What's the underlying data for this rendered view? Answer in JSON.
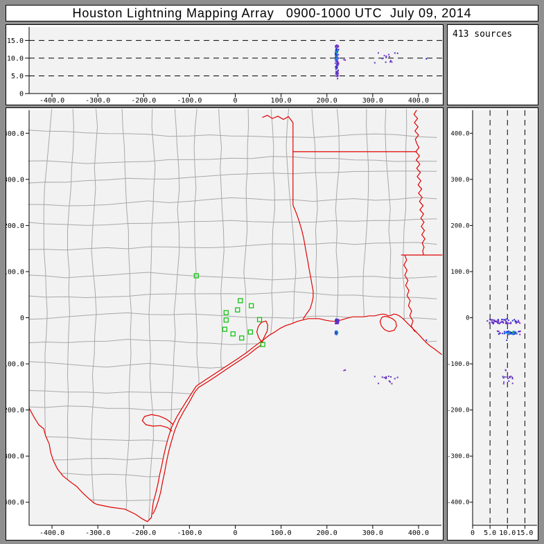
{
  "title": "Houston Lightning Mapping Array   0900-1000 UTC  July 09, 2014",
  "sources_label": "413 sources",
  "colors": {
    "frame": "#8f8f8f",
    "panel": "#ffffff",
    "plot_bg": "#f2f2f2",
    "axis": "#000000",
    "county_line": "#a8a8a8",
    "state_border": "#e00000",
    "station": "#00c000",
    "dash_line": "#000000",
    "text": "#000000",
    "source_purple": "#7a33cc",
    "source_violet": "#5533bb",
    "source_blue": "#2233cc",
    "source_bright_blue": "#2255ee",
    "source_cyan": "#00a8ff",
    "source_green": "#22bb44"
  },
  "axes": {
    "x_km": [
      -450,
      450
    ],
    "y_km": [
      -450,
      450
    ],
    "alt_km": [
      0,
      18.4
    ],
    "x_ticks": {
      "values": [
        -400,
        -300,
        -200,
        -100,
        0,
        100,
        200,
        300,
        400
      ],
      "labels": [
        "-400.0",
        "-300.0",
        "-200.0",
        "-100.0",
        "0",
        "100.0",
        "200.0",
        "300.0",
        "400.0"
      ]
    },
    "y_ticks": {
      "values": [
        400,
        300,
        200,
        100,
        0,
        -100,
        -200,
        -300,
        -400
      ],
      "labels": [
        "400.0",
        "300.0",
        "200.0",
        "100.0",
        "0",
        "-100.0",
        "-200.0",
        "-300.0",
        "-400.0"
      ]
    },
    "alt_ticks": {
      "values": [
        0,
        5,
        10,
        15
      ],
      "labels": [
        "0",
        "5.0",
        "10.0",
        "15.0"
      ]
    },
    "alt_dash_values": [
      5,
      10,
      15
    ]
  },
  "chart_data": {
    "type": "scatter",
    "title": "Houston Lightning Mapping Array   0900-1000 UTC  July 09, 2014",
    "source_count": 413,
    "panels": [
      {
        "id": "alt-vs-east-west",
        "x_range_km": [
          -450,
          450
        ],
        "y_range_km": [
          0,
          18.4
        ],
        "dashed_gridlines_alt_km": [
          5,
          10,
          15
        ]
      },
      {
        "id": "plan-view-map",
        "x_range_km": [
          -450,
          450
        ],
        "y_range_km": [
          -450,
          450
        ]
      },
      {
        "id": "alt-vs-north-south",
        "x_range_km": [
          0,
          18.4
        ],
        "y_range_km": [
          -450,
          450
        ],
        "dashed_gridlines_alt_km": [
          5,
          10,
          15
        ]
      }
    ],
    "stations_km": [
      [
        -85,
        91
      ],
      [
        11,
        37
      ],
      [
        35,
        26
      ],
      [
        5,
        17
      ],
      [
        -20,
        11
      ],
      [
        -20,
        -5
      ],
      [
        -23,
        -25
      ],
      [
        -5,
        -35
      ],
      [
        14,
        -44
      ],
      [
        33,
        -31
      ],
      [
        53,
        -4
      ],
      [
        60,
        -58
      ]
    ],
    "flash_clusters": [
      {
        "name": "coastal-storm-column",
        "x": 222,
        "y": -8,
        "sx": 3.5,
        "sy": 5,
        "alt": [
          4.2,
          13.8
        ],
        "n": 60,
        "colors": [
          "source_purple",
          "source_violet",
          "source_purple",
          "source_blue"
        ]
      },
      {
        "name": "coastal-storm-band",
        "x": 221,
        "y": -33,
        "sx": 3,
        "sy": 4,
        "alt": [
          7.0,
          13.8
        ],
        "n": 25,
        "colors": [
          "source_blue",
          "source_violet",
          "source_purple"
        ]
      },
      {
        "name": "coastal-storm-core",
        "x": 221,
        "y": -33,
        "sx": 2.5,
        "sy": 3,
        "alt": [
          9.3,
          12.7
        ],
        "n": 38,
        "colors": [
          "source_bright_blue",
          "source_cyan",
          "source_blue",
          "source_cyan",
          "source_green"
        ]
      },
      {
        "name": "offshore-scatter",
        "x": 330,
        "y": -135,
        "sx": 26,
        "sy": 9,
        "alt": [
          8.5,
          11.5
        ],
        "n": 14,
        "colors": [
          "source_purple",
          "source_violet"
        ]
      },
      {
        "name": "stray-pair",
        "x": 236,
        "y": -113,
        "sx": 5,
        "sy": 4,
        "alt": [
          9.0,
          10.2
        ],
        "n": 2,
        "colors": [
          "source_purple"
        ]
      },
      {
        "name": "stray-east",
        "x": 416,
        "y": -48,
        "sx": 1,
        "sy": 1,
        "alt": [
          9.5,
          10.0
        ],
        "n": 1,
        "colors": [
          "source_blue"
        ]
      }
    ]
  },
  "map_features": {
    "county_grid": {
      "spacing_x_km": 52,
      "spacing_y_km": 50,
      "jitter_km": 9,
      "seed": 13
    },
    "coastline": [
      [
        -183,
        -432
      ],
      [
        -179,
        -400
      ],
      [
        -174,
        -382
      ],
      [
        -169,
        -361
      ],
      [
        -165,
        -340
      ],
      [
        -160,
        -319
      ],
      [
        -156,
        -298
      ],
      [
        -151,
        -277
      ],
      [
        -145,
        -256
      ],
      [
        -138,
        -235
      ],
      [
        -127,
        -214
      ],
      [
        -116,
        -196
      ],
      [
        -104,
        -177
      ],
      [
        -89,
        -154
      ],
      [
        -85,
        -148
      ],
      [
        -67,
        -136
      ],
      [
        -44,
        -121
      ],
      [
        -21,
        -106
      ],
      [
        2,
        -91
      ],
      [
        24,
        -76
      ],
      [
        42,
        -62
      ],
      [
        54,
        -53
      ],
      [
        64,
        -46
      ],
      [
        74,
        -38
      ],
      [
        86,
        -31
      ],
      [
        98,
        -23
      ],
      [
        110,
        -17
      ],
      [
        123,
        -13
      ],
      [
        135,
        -8
      ],
      [
        147,
        -5
      ],
      [
        159,
        -2
      ],
      [
        171,
        -2
      ],
      [
        183,
        -2
      ],
      [
        195,
        -5
      ],
      [
        207,
        -7
      ],
      [
        219,
        -8
      ],
      [
        231,
        -5
      ],
      [
        244,
        -1
      ],
      [
        256,
        2
      ],
      [
        268,
        2
      ],
      [
        280,
        2
      ],
      [
        292,
        4
      ],
      [
        304,
        4
      ],
      [
        316,
        7
      ],
      [
        322,
        8
      ],
      [
        328,
        7
      ],
      [
        334,
        4
      ],
      [
        340,
        5
      ],
      [
        346,
        8
      ],
      [
        352,
        7
      ],
      [
        358,
        4
      ],
      [
        365,
        -1
      ],
      [
        371,
        -7
      ],
      [
        377,
        -13
      ],
      [
        383,
        -19
      ],
      [
        389,
        -25
      ],
      [
        395,
        -31
      ],
      [
        402,
        -38
      ],
      [
        410,
        -47
      ],
      [
        418,
        -55
      ],
      [
        425,
        -61
      ],
      [
        434,
        -67
      ],
      [
        443,
        -74
      ],
      [
        451,
        -80
      ]
    ],
    "barrier_island": [
      [
        -180,
        -426
      ],
      [
        -174,
        -414
      ],
      [
        -168,
        -397
      ],
      [
        -163,
        -379
      ],
      [
        -159,
        -357
      ],
      [
        -154,
        -334
      ],
      [
        -150,
        -312
      ],
      [
        -145,
        -289
      ],
      [
        -139,
        -267
      ],
      [
        -132,
        -244
      ],
      [
        -123,
        -222
      ],
      [
        -112,
        -202
      ],
      [
        -101,
        -184
      ],
      [
        -89,
        -162
      ],
      [
        -80,
        -151
      ],
      [
        -62,
        -140
      ],
      [
        -39,
        -125
      ],
      [
        -17,
        -110
      ],
      [
        6,
        -95
      ],
      [
        29,
        -80
      ],
      [
        45,
        -67
      ],
      [
        57,
        -59
      ]
    ],
    "rio_grande": [
      [
        -450,
        -196
      ],
      [
        -439,
        -216
      ],
      [
        -429,
        -232
      ],
      [
        -418,
        -241
      ],
      [
        -414,
        -256
      ],
      [
        -406,
        -274
      ],
      [
        -403,
        -292
      ],
      [
        -397,
        -310
      ],
      [
        -388,
        -328
      ],
      [
        -376,
        -343
      ],
      [
        -361,
        -355
      ],
      [
        -346,
        -366
      ],
      [
        -334,
        -379
      ],
      [
        -321,
        -391
      ],
      [
        -308,
        -402
      ],
      [
        -301,
        -405
      ],
      [
        -271,
        -411
      ],
      [
        -241,
        -415
      ],
      [
        -218,
        -426
      ],
      [
        -203,
        -436
      ],
      [
        -192,
        -442
      ],
      [
        -183,
        -433
      ],
      [
        -183,
        -432
      ]
    ],
    "red_river": [
      [
        59,
        434
      ],
      [
        70,
        439
      ],
      [
        81,
        432
      ],
      [
        93,
        437
      ],
      [
        105,
        430
      ],
      [
        116,
        436
      ],
      [
        126,
        423
      ]
    ],
    "tx_ar_border": [
      [
        126,
        423
      ],
      [
        126,
        244
      ]
    ],
    "ok_ar_border": [
      [
        126,
        360
      ],
      [
        396,
        360
      ]
    ],
    "mississippi_upper": [
      [
        396,
        450
      ],
      [
        390,
        441
      ],
      [
        398,
        432
      ],
      [
        391,
        423
      ],
      [
        399,
        414
      ],
      [
        392,
        405
      ],
      [
        400,
        396
      ],
      [
        393,
        387
      ],
      [
        396,
        378
      ],
      [
        401,
        369
      ],
      [
        394,
        360
      ],
      [
        402,
        351
      ],
      [
        395,
        342
      ],
      [
        403,
        333
      ],
      [
        396,
        324
      ],
      [
        404,
        315
      ],
      [
        397,
        306
      ],
      [
        405,
        297
      ],
      [
        399,
        288
      ],
      [
        407,
        279
      ],
      [
        400,
        270
      ],
      [
        408,
        261
      ],
      [
        402,
        252
      ],
      [
        410,
        243
      ],
      [
        403,
        234
      ],
      [
        411,
        225
      ],
      [
        405,
        216
      ],
      [
        412,
        207
      ],
      [
        406,
        198
      ],
      [
        413,
        189
      ],
      [
        407,
        180
      ],
      [
        414,
        171
      ],
      [
        408,
        162
      ],
      [
        412,
        153
      ],
      [
        409,
        145
      ],
      [
        411,
        137
      ]
    ],
    "ar_la_border": [
      [
        362,
        136
      ],
      [
        452,
        136
      ]
    ],
    "mississippi_lower": [
      [
        370,
        136
      ],
      [
        374,
        125
      ],
      [
        368,
        114
      ],
      [
        375,
        103
      ],
      [
        370,
        92
      ],
      [
        377,
        81
      ],
      [
        372,
        70
      ],
      [
        379,
        59
      ],
      [
        375,
        48
      ],
      [
        382,
        37
      ],
      [
        378,
        26
      ],
      [
        385,
        15
      ],
      [
        381,
        4
      ],
      [
        388,
        -7
      ],
      [
        384,
        -18
      ],
      [
        391,
        -29
      ],
      [
        396,
        -31
      ]
    ],
    "sabine_river": [
      [
        126,
        244
      ],
      [
        134,
        225
      ],
      [
        140,
        207
      ],
      [
        145,
        190
      ],
      [
        149,
        174
      ],
      [
        152,
        157
      ],
      [
        155,
        140
      ],
      [
        158,
        124
      ],
      [
        161,
        107
      ],
      [
        164,
        91
      ],
      [
        167,
        74
      ],
      [
        170,
        58
      ],
      [
        170,
        44
      ],
      [
        167,
        31
      ],
      [
        163,
        19
      ],
      [
        155,
        8
      ],
      [
        148,
        -3
      ]
    ],
    "galveston_bay": [
      [
        59,
        -55
      ],
      [
        51,
        -43
      ],
      [
        47,
        -31
      ],
      [
        50,
        -19
      ],
      [
        57,
        -10
      ],
      [
        67,
        -7
      ],
      [
        71,
        -16
      ],
      [
        70,
        -28
      ],
      [
        65,
        -38
      ],
      [
        60,
        -49
      ],
      [
        59,
        -55
      ]
    ],
    "corpus_bay": [
      [
        -135,
        -232
      ],
      [
        -150,
        -220
      ],
      [
        -166,
        -213
      ],
      [
        -183,
        -210
      ],
      [
        -198,
        -214
      ],
      [
        -203,
        -223
      ],
      [
        -195,
        -232
      ],
      [
        -180,
        -235
      ],
      [
        -163,
        -234
      ],
      [
        -148,
        -238
      ],
      [
        -138,
        -246
      ]
    ],
    "la_lake": [
      [
        320,
        1
      ],
      [
        316,
        -8
      ],
      [
        319,
        -18
      ],
      [
        326,
        -26
      ],
      [
        336,
        -30
      ],
      [
        347,
        -27
      ],
      [
        352,
        -18
      ],
      [
        350,
        -8
      ],
      [
        343,
        -2
      ],
      [
        333,
        2
      ],
      [
        326,
        3
      ],
      [
        320,
        1
      ]
    ]
  }
}
